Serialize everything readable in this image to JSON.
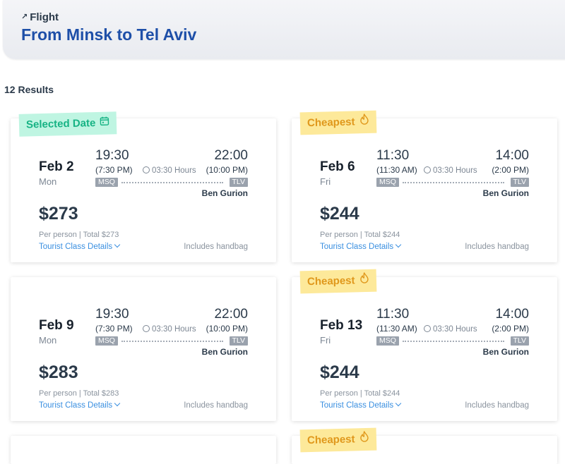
{
  "header": {
    "kicker": "Flight",
    "title": "From Minsk to Tel Aviv"
  },
  "results": {
    "count_label": "12 Results"
  },
  "cards": [
    {
      "tag": "Selected Date",
      "tag_type": "selected",
      "tag_icon": "calendar-icon",
      "date": "Feb 2",
      "dow": "Mon",
      "dep_time": "19:30",
      "dep_time12": "(7:30 PM)",
      "duration": "03:30 Hours",
      "arr_time": "22:00",
      "arr_time12": "(10:00 PM)",
      "from_code": "MSQ",
      "to_code": "TLV",
      "airport": "Ben Gurion",
      "price": "$273",
      "per_person": "Per person | Total $273",
      "class_details": "Tourist Class Details",
      "handbag": "Includes handbag"
    },
    {
      "tag": "Cheapest",
      "tag_type": "cheapest",
      "tag_icon": "fire-icon",
      "date": "Feb 6",
      "dow": "Fri",
      "dep_time": "11:30",
      "dep_time12": "(11:30 AM)",
      "duration": "03:30 Hours",
      "arr_time": "14:00",
      "arr_time12": "(2:00 PM)",
      "from_code": "MSQ",
      "to_code": "TLV",
      "airport": "Ben Gurion",
      "price": "$244",
      "per_person": "Per person | Total $244",
      "class_details": "Tourist Class Details",
      "handbag": "Includes handbag"
    },
    {
      "tag": "",
      "tag_type": "none",
      "date": "Feb 9",
      "dow": "Mon",
      "dep_time": "19:30",
      "dep_time12": "(7:30 PM)",
      "duration": "03:30 Hours",
      "arr_time": "22:00",
      "arr_time12": "(10:00 PM)",
      "from_code": "MSQ",
      "to_code": "TLV",
      "airport": "Ben Gurion",
      "price": "$283",
      "per_person": "Per person | Total $283",
      "class_details": "Tourist Class Details",
      "handbag": "Includes handbag"
    },
    {
      "tag": "Cheapest",
      "tag_type": "cheapest",
      "tag_icon": "fire-icon",
      "date": "Feb 13",
      "dow": "Fri",
      "dep_time": "11:30",
      "dep_time12": "(11:30 AM)",
      "duration": "03:30 Hours",
      "arr_time": "14:00",
      "arr_time12": "(2:00 PM)",
      "from_code": "MSQ",
      "to_code": "TLV",
      "airport": "Ben Gurion",
      "price": "$244",
      "per_person": "Per person | Total $244",
      "class_details": "Tourist Class Details",
      "handbag": "Includes handbag"
    },
    {
      "tag": "",
      "tag_type": "none"
    },
    {
      "tag": "Cheapest",
      "tag_type": "cheapest",
      "tag_icon": "fire-icon"
    }
  ],
  "colors": {
    "title_blue": "#1e4fa8",
    "link_blue": "#3a8fe0",
    "selected_green": "#16b384",
    "selected_bg": "#bff5e2",
    "cheapest_orange": "#e0981c",
    "cheapest_bg": "#fde99a"
  }
}
